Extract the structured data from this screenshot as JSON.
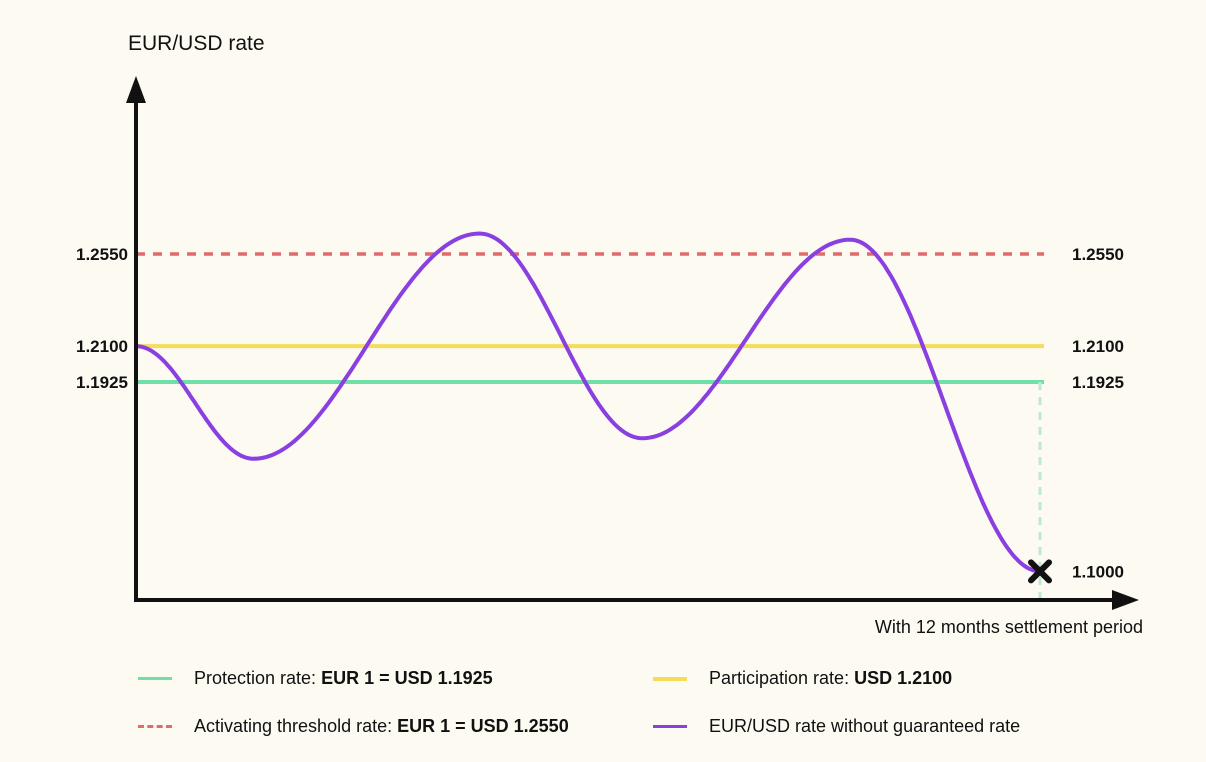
{
  "chart_data": {
    "type": "line",
    "ylabel": "EUR/USD rate",
    "xlabel": "With 12 months settlement period",
    "reference_lines": [
      {
        "name": "activating_threshold",
        "value": 1.255,
        "label": "1.2550",
        "color": "#e06b6b",
        "style": "dashed"
      },
      {
        "name": "participation",
        "value": 1.21,
        "label": "1.2100",
        "color": "#f5dc5a",
        "style": "solid"
      },
      {
        "name": "protection",
        "value": 1.1925,
        "label": "1.1925",
        "color": "#6fe0a8",
        "style": "solid"
      }
    ],
    "series": [
      {
        "color": "#8a3fe0",
        "x": [
          0,
          0.13,
          0.38,
          0.56,
          0.79,
          1.0
        ],
        "y": [
          1.21,
          1.155,
          1.265,
          1.165,
          1.262,
          1.1
        ]
      }
    ],
    "end_marker": {
      "label": "1.1000",
      "value": 1.1
    },
    "ylim": [
      1.086,
      1.34
    ]
  },
  "legend": [
    {
      "text": "Protection rate: ",
      "bold": "EUR 1 = USD 1.1925",
      "color": "#6fe0a8",
      "style": "solid"
    },
    {
      "text": "Participation rate: ",
      "bold": "USD 1.2100",
      "color": "#f5dc5a",
      "style": "solid"
    },
    {
      "text": "Activating threshold rate: ",
      "bold": "EUR 1 = USD 1.2550",
      "color": "#e06b6b",
      "style": "dashed"
    },
    {
      "text": "EUR/USD rate without guaranteed rate",
      "bold": "",
      "color": "#8a3fe0",
      "style": "solid"
    }
  ]
}
